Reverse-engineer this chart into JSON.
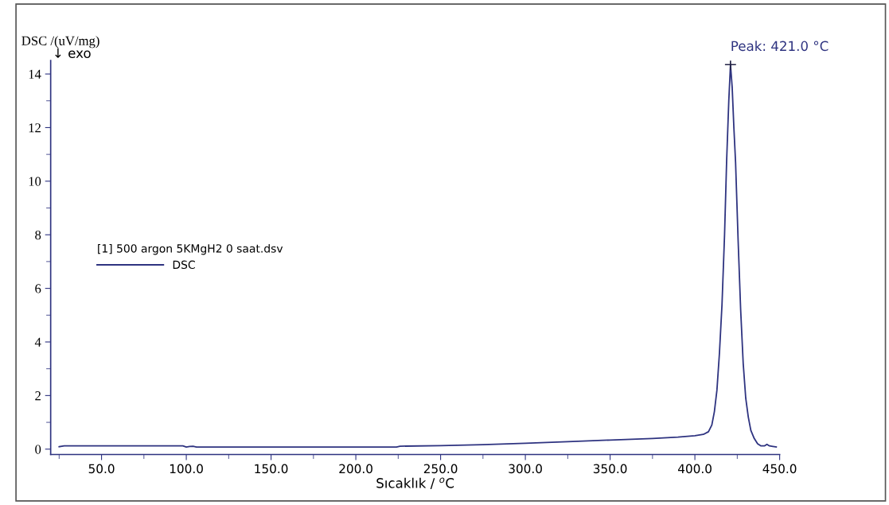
{
  "chart_data": {
    "type": "line",
    "xlabel": "Sıcaklık / $^{o}$C",
    "ylabel": "DSC /(uV/mg)",
    "legend_title": "[1] 500 argon 5KMgH2 0 saat.dsv",
    "legend": "left",
    "grid": false,
    "marker": "none",
    "line_style": "solid",
    "annotations": [
      "↓ exo",
      {
        "text": "Peak: 421.0 °C",
        "x": 421,
        "y": 14.35
      }
    ],
    "xlim": [
      20,
      450
    ],
    "ylim": [
      -0.2,
      14.5
    ],
    "xticks": [
      {
        "value": 50,
        "label": "50.0"
      },
      {
        "value": 100,
        "label": "100.0"
      },
      {
        "value": 150,
        "label": "150.0"
      },
      {
        "value": 200,
        "label": "200.0"
      },
      {
        "value": 250,
        "label": "250.0"
      },
      {
        "value": 300,
        "label": "300.0"
      },
      {
        "value": 350,
        "label": "350.0"
      },
      {
        "value": 400,
        "label": "400.0"
      },
      {
        "value": 450,
        "label": "450.0"
      }
    ],
    "yticks": [
      0,
      2,
      4,
      6,
      8,
      10,
      12,
      14
    ],
    "series": [
      {
        "name": "DSC",
        "color": "#2e3380",
        "x": [
          25,
          28,
          50,
          75,
          98,
          100,
          102,
          104,
          106,
          150,
          200,
          224,
          226,
          250,
          275,
          300,
          325,
          350,
          375,
          390,
          400,
          405,
          408,
          410,
          411.5,
          413,
          414.5,
          416,
          417.5,
          418.7,
          420,
          421,
          422,
          423,
          424,
          425.5,
          427,
          428.5,
          430,
          431.5,
          433,
          435,
          437,
          439,
          441,
          442.5,
          444,
          446,
          448
        ],
        "values": [
          0.09,
          0.12,
          0.12,
          0.12,
          0.12,
          0.08,
          0.1,
          0.11,
          0.08,
          0.08,
          0.08,
          0.08,
          0.11,
          0.13,
          0.17,
          0.22,
          0.28,
          0.34,
          0.4,
          0.45,
          0.5,
          0.55,
          0.65,
          0.9,
          1.4,
          2.2,
          3.6,
          5.4,
          8.0,
          10.7,
          13.0,
          14.35,
          13.5,
          12.0,
          10.7,
          7.8,
          5.2,
          3.2,
          1.9,
          1.2,
          0.7,
          0.4,
          0.2,
          0.12,
          0.12,
          0.18,
          0.12,
          0.1,
          0.08
        ]
      }
    ]
  }
}
